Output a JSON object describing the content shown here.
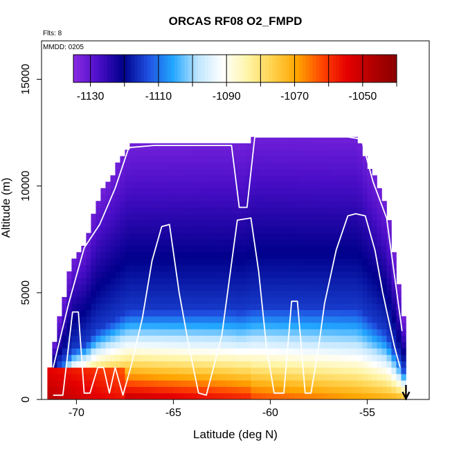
{
  "chart_data": {
    "type": "heatmap",
    "title": "ORCAS RF08 O2_FMPD",
    "annotations": {
      "flights": "Flts: 8",
      "date": "MMDD: 0205"
    },
    "xlabel": "Latitude (deg N)",
    "ylabel": "Altitude (m)",
    "xlim": [
      -71.8,
      -51.8
    ],
    "ylim": [
      0,
      16800
    ],
    "xticks": [
      -70,
      -65,
      -60,
      -55
    ],
    "yticks": [
      0,
      5000,
      10000,
      15000
    ],
    "colorbar": {
      "range": [
        -1135,
        -1040
      ],
      "ticks": [
        -1130,
        -1110,
        -1090,
        -1070,
        -1050
      ],
      "tick_labels": [
        "-1130",
        "-1110",
        "-1090",
        "-1070",
        "-1050"
      ],
      "colors": [
        "#8a2be2",
        "#4b0ec8",
        "#00008b",
        "#1f4fe0",
        "#22a6ff",
        "#bfe6ff",
        "#ffffff",
        "#fff5a8",
        "#ffd24d",
        "#ffa500",
        "#ff4500",
        "#e60000",
        "#b30000",
        "#8b0000"
      ]
    },
    "section_envelope": {
      "lat": [
        -71.5,
        -70.8,
        -70.2,
        -69.5,
        -69.0,
        -68.0,
        -67.3,
        -62.0,
        -61.5,
        -60.8,
        -55.5,
        -54.0,
        -53.0
      ],
      "top_alt": [
        1000,
        4200,
        6600,
        7500,
        9200,
        10800,
        11900,
        12000,
        11800,
        12400,
        12300,
        9000,
        3000
      ]
    },
    "field_model": {
      "surface_value": -1052,
      "mid_value": -1115,
      "top_value": -1132,
      "warm_pool": {
        "lat_range": [
          -71.5,
          -67.5
        ],
        "alt_top": 1400,
        "value": -1048
      }
    },
    "flight_track": {
      "lat": [
        -71.2,
        -70.7,
        -70.2,
        -69.9,
        -69.6,
        -69.3,
        -68.9,
        -68.6,
        -68.3,
        -68.0,
        -67.6,
        -67.2,
        -66.6,
        -66.1,
        -65.6,
        -65.2,
        -64.7,
        -64.2,
        -63.7,
        -63.3,
        -62.5,
        -61.7,
        -61.0,
        -60.6,
        -60.2,
        -59.8,
        -59.3,
        -58.9,
        -58.6,
        -58.2,
        -57.9,
        -57.5,
        -57.2,
        -56.6,
        -56.0,
        -55.6,
        -55.1,
        -54.6,
        -54.2,
        -53.6,
        -53.3
      ],
      "alt": [
        200,
        200,
        4100,
        4100,
        300,
        300,
        1500,
        1500,
        300,
        1500,
        200,
        1500,
        3800,
        6500,
        8100,
        8200,
        5000,
        2500,
        300,
        200,
        3000,
        8400,
        8500,
        6000,
        2500,
        300,
        300,
        4600,
        4600,
        300,
        300,
        2500,
        4500,
        7000,
        8600,
        8700,
        8600,
        7000,
        5000,
        2500,
        1500
      ]
    },
    "flight_track_top": {
      "lat": [
        -71.2,
        -70.4,
        -69.6,
        -68.8,
        -68.0,
        -67.3,
        -66.0,
        -64.0,
        -62.0,
        -61.6,
        -61.2,
        -60.8,
        -58.5,
        -56.0,
        -55.3,
        -54.7,
        -54.0,
        -53.2
      ],
      "alt": [
        1500,
        4500,
        7100,
        8200,
        9900,
        11800,
        11900,
        11900,
        11900,
        9000,
        9000,
        12300,
        12300,
        12300,
        12200,
        10200,
        8500,
        3200
      ]
    },
    "marker": {
      "lat": -53.0,
      "symbol": "down-arrow"
    }
  }
}
